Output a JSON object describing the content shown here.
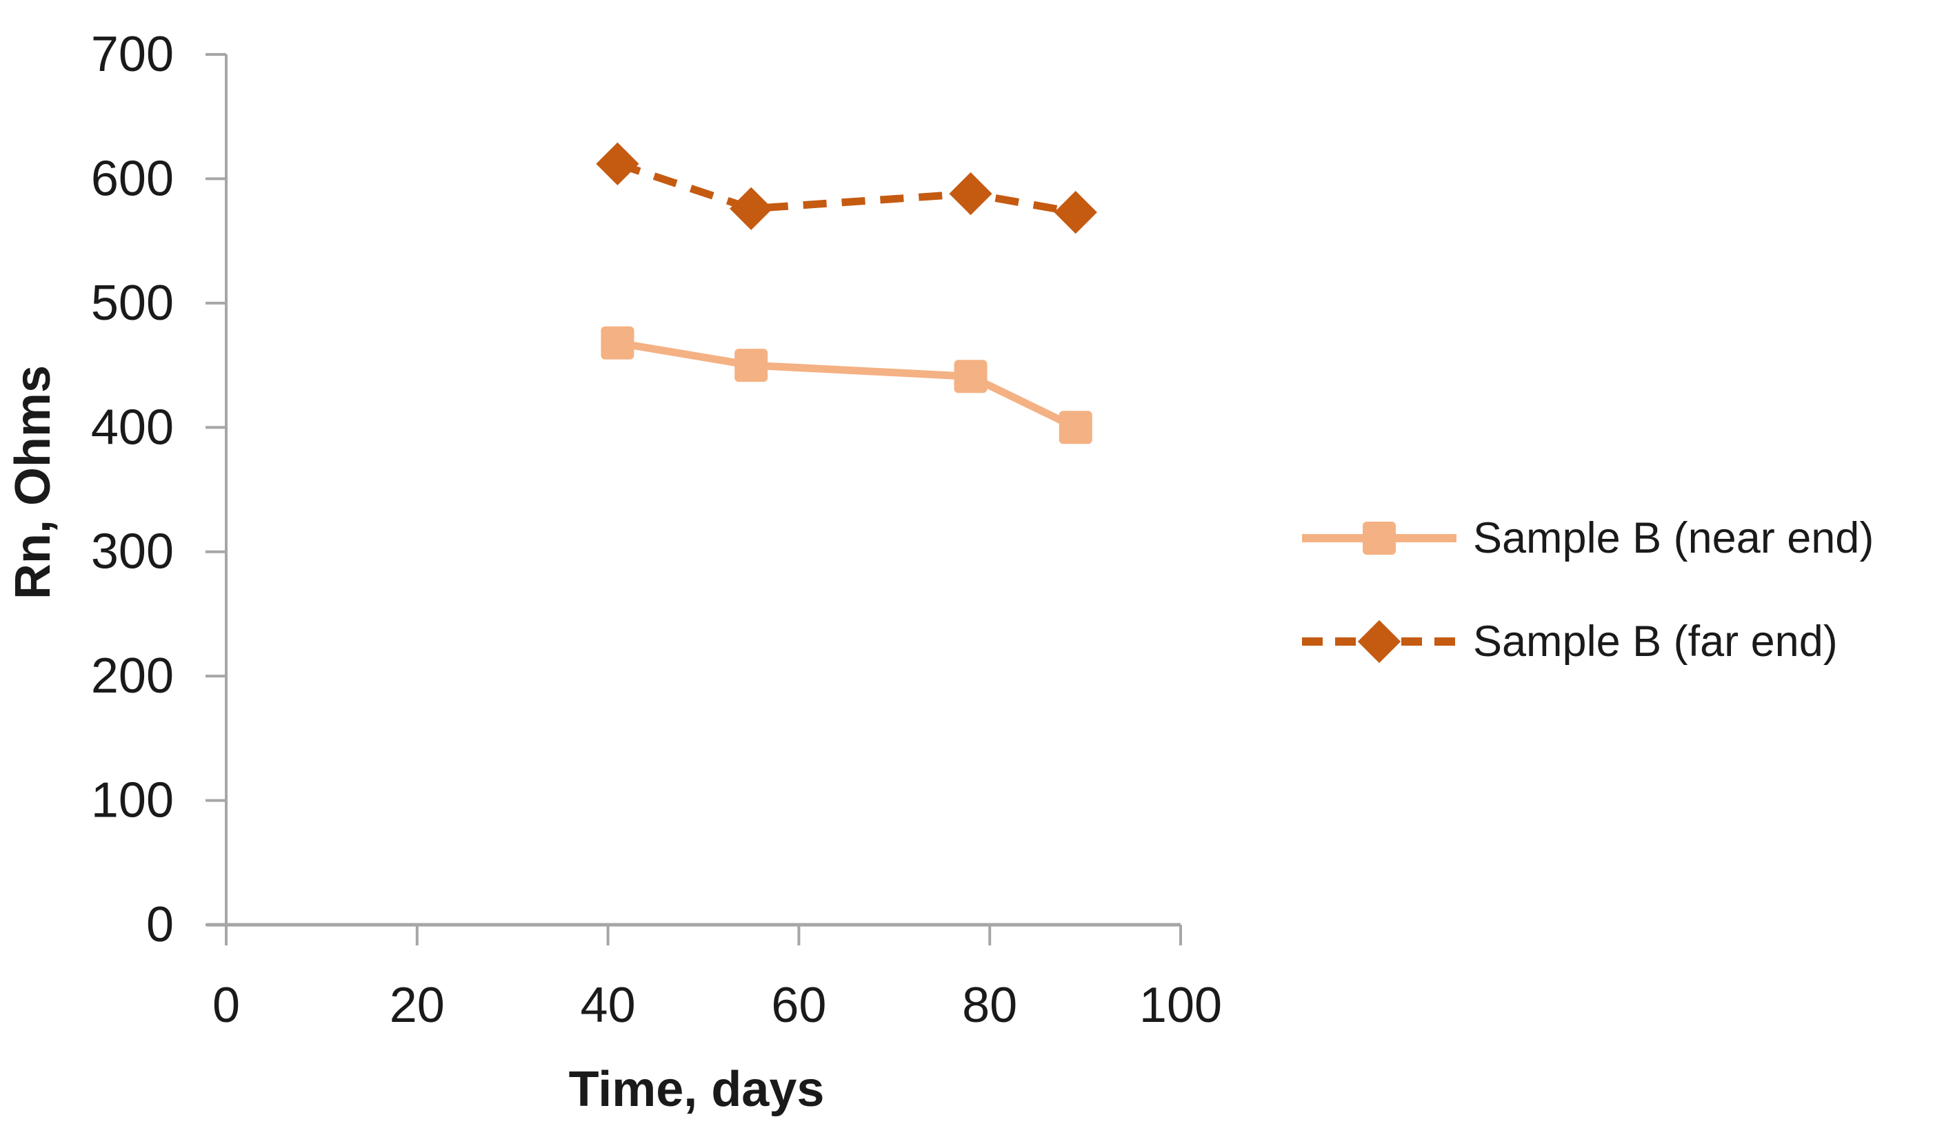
{
  "chart_data": {
    "type": "line",
    "title": "",
    "xlabel": "Time, days",
    "ylabel": "Rn, Ohms",
    "xlim": [
      0,
      100
    ],
    "ylim": [
      0,
      700
    ],
    "x_ticks": [
      0,
      20,
      40,
      60,
      80,
      100
    ],
    "y_ticks": [
      700,
      600,
      500,
      400,
      300,
      200,
      100,
      0
    ],
    "grid": false,
    "legend_position": "right",
    "axis_color": "#a6a6a6",
    "text_color": "#1a1a1a",
    "background_color": "#ffffff",
    "series": [
      {
        "name": "Sample B (near end)",
        "x": [
          41,
          55,
          78,
          89
        ],
        "values": [
          468,
          450,
          441,
          400
        ],
        "color": "#f4b183",
        "marker": "square",
        "line_style": "solid"
      },
      {
        "name": "Sample B (far end)",
        "x": [
          41,
          55,
          78,
          89
        ],
        "values": [
          612,
          576,
          588,
          573
        ],
        "color": "#c55a11",
        "marker": "diamond",
        "line_style": "dashed"
      }
    ]
  }
}
